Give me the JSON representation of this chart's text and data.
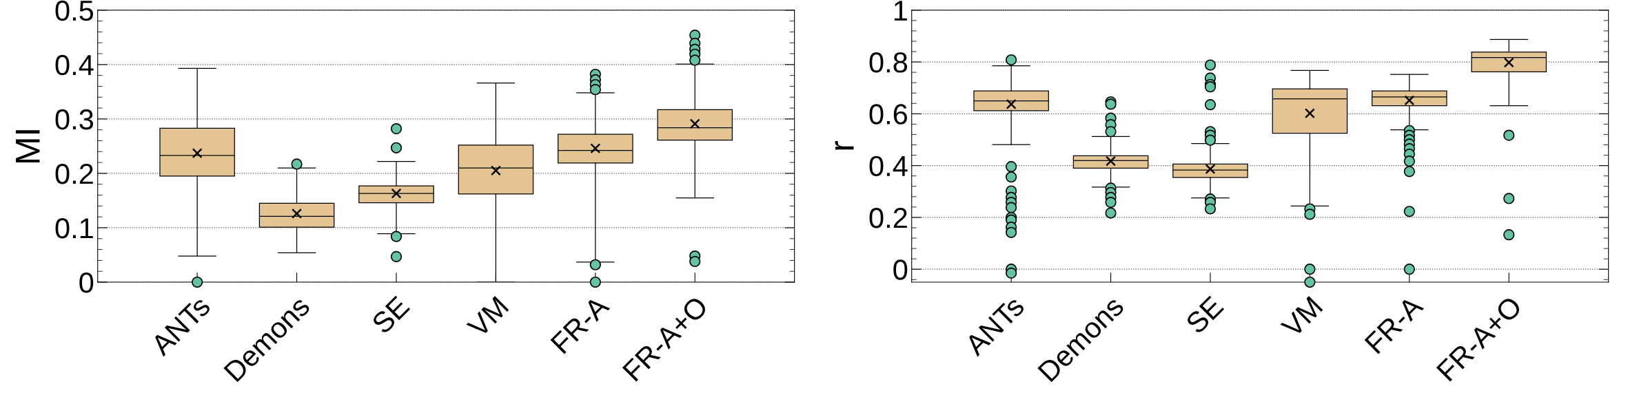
{
  "chart_data": [
    {
      "type": "box",
      "ylabel": "MI",
      "categories": [
        "ANTs",
        "Demons",
        "SE",
        "VM",
        "FR-A",
        "FR-A+O"
      ],
      "color": "#e5c494",
      "ylim": [
        0,
        0.5
      ],
      "yticks": [
        0,
        0.1,
        0.2,
        0.3,
        0.4,
        0.5
      ],
      "grid": "y",
      "marker": "circle",
      "boxes": [
        {
          "low": 0.048,
          "q1": 0.195,
          "median": 0.233,
          "q3": 0.283,
          "high": 0.393,
          "mean": 0.237,
          "outliers": [
            0
          ]
        },
        {
          "low": 0.054,
          "q1": 0.101,
          "median": 0.121,
          "q3": 0.145,
          "high": 0.21,
          "mean": 0.126,
          "outliers": [
            0.217
          ]
        },
        {
          "low": 0.089,
          "q1": 0.146,
          "median": 0.163,
          "q3": 0.177,
          "high": 0.222,
          "mean": 0.163,
          "outliers": [
            0.282,
            0.247,
            0.084,
            0.047
          ]
        },
        {
          "low": 0,
          "q1": 0.162,
          "median": 0.21,
          "q3": 0.252,
          "high": 0.366,
          "mean": 0.205
        },
        {
          "low": 0.037,
          "q1": 0.219,
          "median": 0.242,
          "q3": 0.272,
          "high": 0.348,
          "mean": 0.246,
          "outliers": [
            0.382,
            0.372,
            0.363,
            0.354,
            0.032,
            0
          ]
        },
        {
          "low": 0.155,
          "q1": 0.261,
          "median": 0.284,
          "q3": 0.317,
          "high": 0.401,
          "mean": 0.291,
          "outliers": [
            0.454,
            0.439,
            0.428,
            0.419,
            0.408,
            0.048,
            0.038
          ]
        }
      ]
    },
    {
      "type": "box",
      "ylabel": "r",
      "categories": [
        "ANTs",
        "Demons",
        "SE",
        "VM",
        "FR-A",
        "FR-A+O"
      ],
      "color": "#e5c494",
      "ylim": [
        -0.05,
        1.0
      ],
      "yticks": [
        0,
        0.2,
        0.4,
        0.6,
        0.8,
        1
      ],
      "grid": "y",
      "marker": "circle",
      "boxes": [
        {
          "low": 0.481,
          "q1": 0.612,
          "median": 0.65,
          "q3": 0.688,
          "high": 0.785,
          "mean": 0.637,
          "outliers": [
            0.808,
            0.396,
            0.356,
            0.302,
            0.277,
            0.258,
            0.238,
            0.2,
            0.19,
            0.162,
            0.142,
            0,
            -0.015
          ]
        },
        {
          "low": 0.317,
          "q1": 0.39,
          "median": 0.419,
          "q3": 0.438,
          "high": 0.512,
          "mean": 0.417,
          "outliers": [
            0.646,
            0.637,
            0.583,
            0.558,
            0.531,
            0.313,
            0.296,
            0.277,
            0.258,
            0.217
          ]
        },
        {
          "low": 0.275,
          "q1": 0.354,
          "median": 0.383,
          "q3": 0.406,
          "high": 0.485,
          "mean": 0.387,
          "outliers": [
            0.788,
            0.738,
            0.713,
            0.704,
            0.635,
            0.531,
            0.517,
            0.498,
            0.271,
            0.258,
            0.233
          ]
        },
        {
          "low": 0.244,
          "q1": 0.525,
          "median": 0.658,
          "q3": 0.696,
          "high": 0.767,
          "mean": 0.602,
          "outliers": [
            0.233,
            0.212,
            0,
            -0.05
          ]
        },
        {
          "low": 0.538,
          "q1": 0.631,
          "median": 0.665,
          "q3": 0.688,
          "high": 0.752,
          "mean": 0.652,
          "outliers": [
            0.535,
            0.517,
            0.5,
            0.483,
            0.465,
            0.444,
            0.417,
            0.377,
            0.223,
            0
          ]
        },
        {
          "low": 0.631,
          "q1": 0.762,
          "median": 0.817,
          "q3": 0.838,
          "high": 0.887,
          "mean": 0.798,
          "outliers": [
            0.517,
            0.273,
            0.133
          ]
        }
      ]
    }
  ]
}
